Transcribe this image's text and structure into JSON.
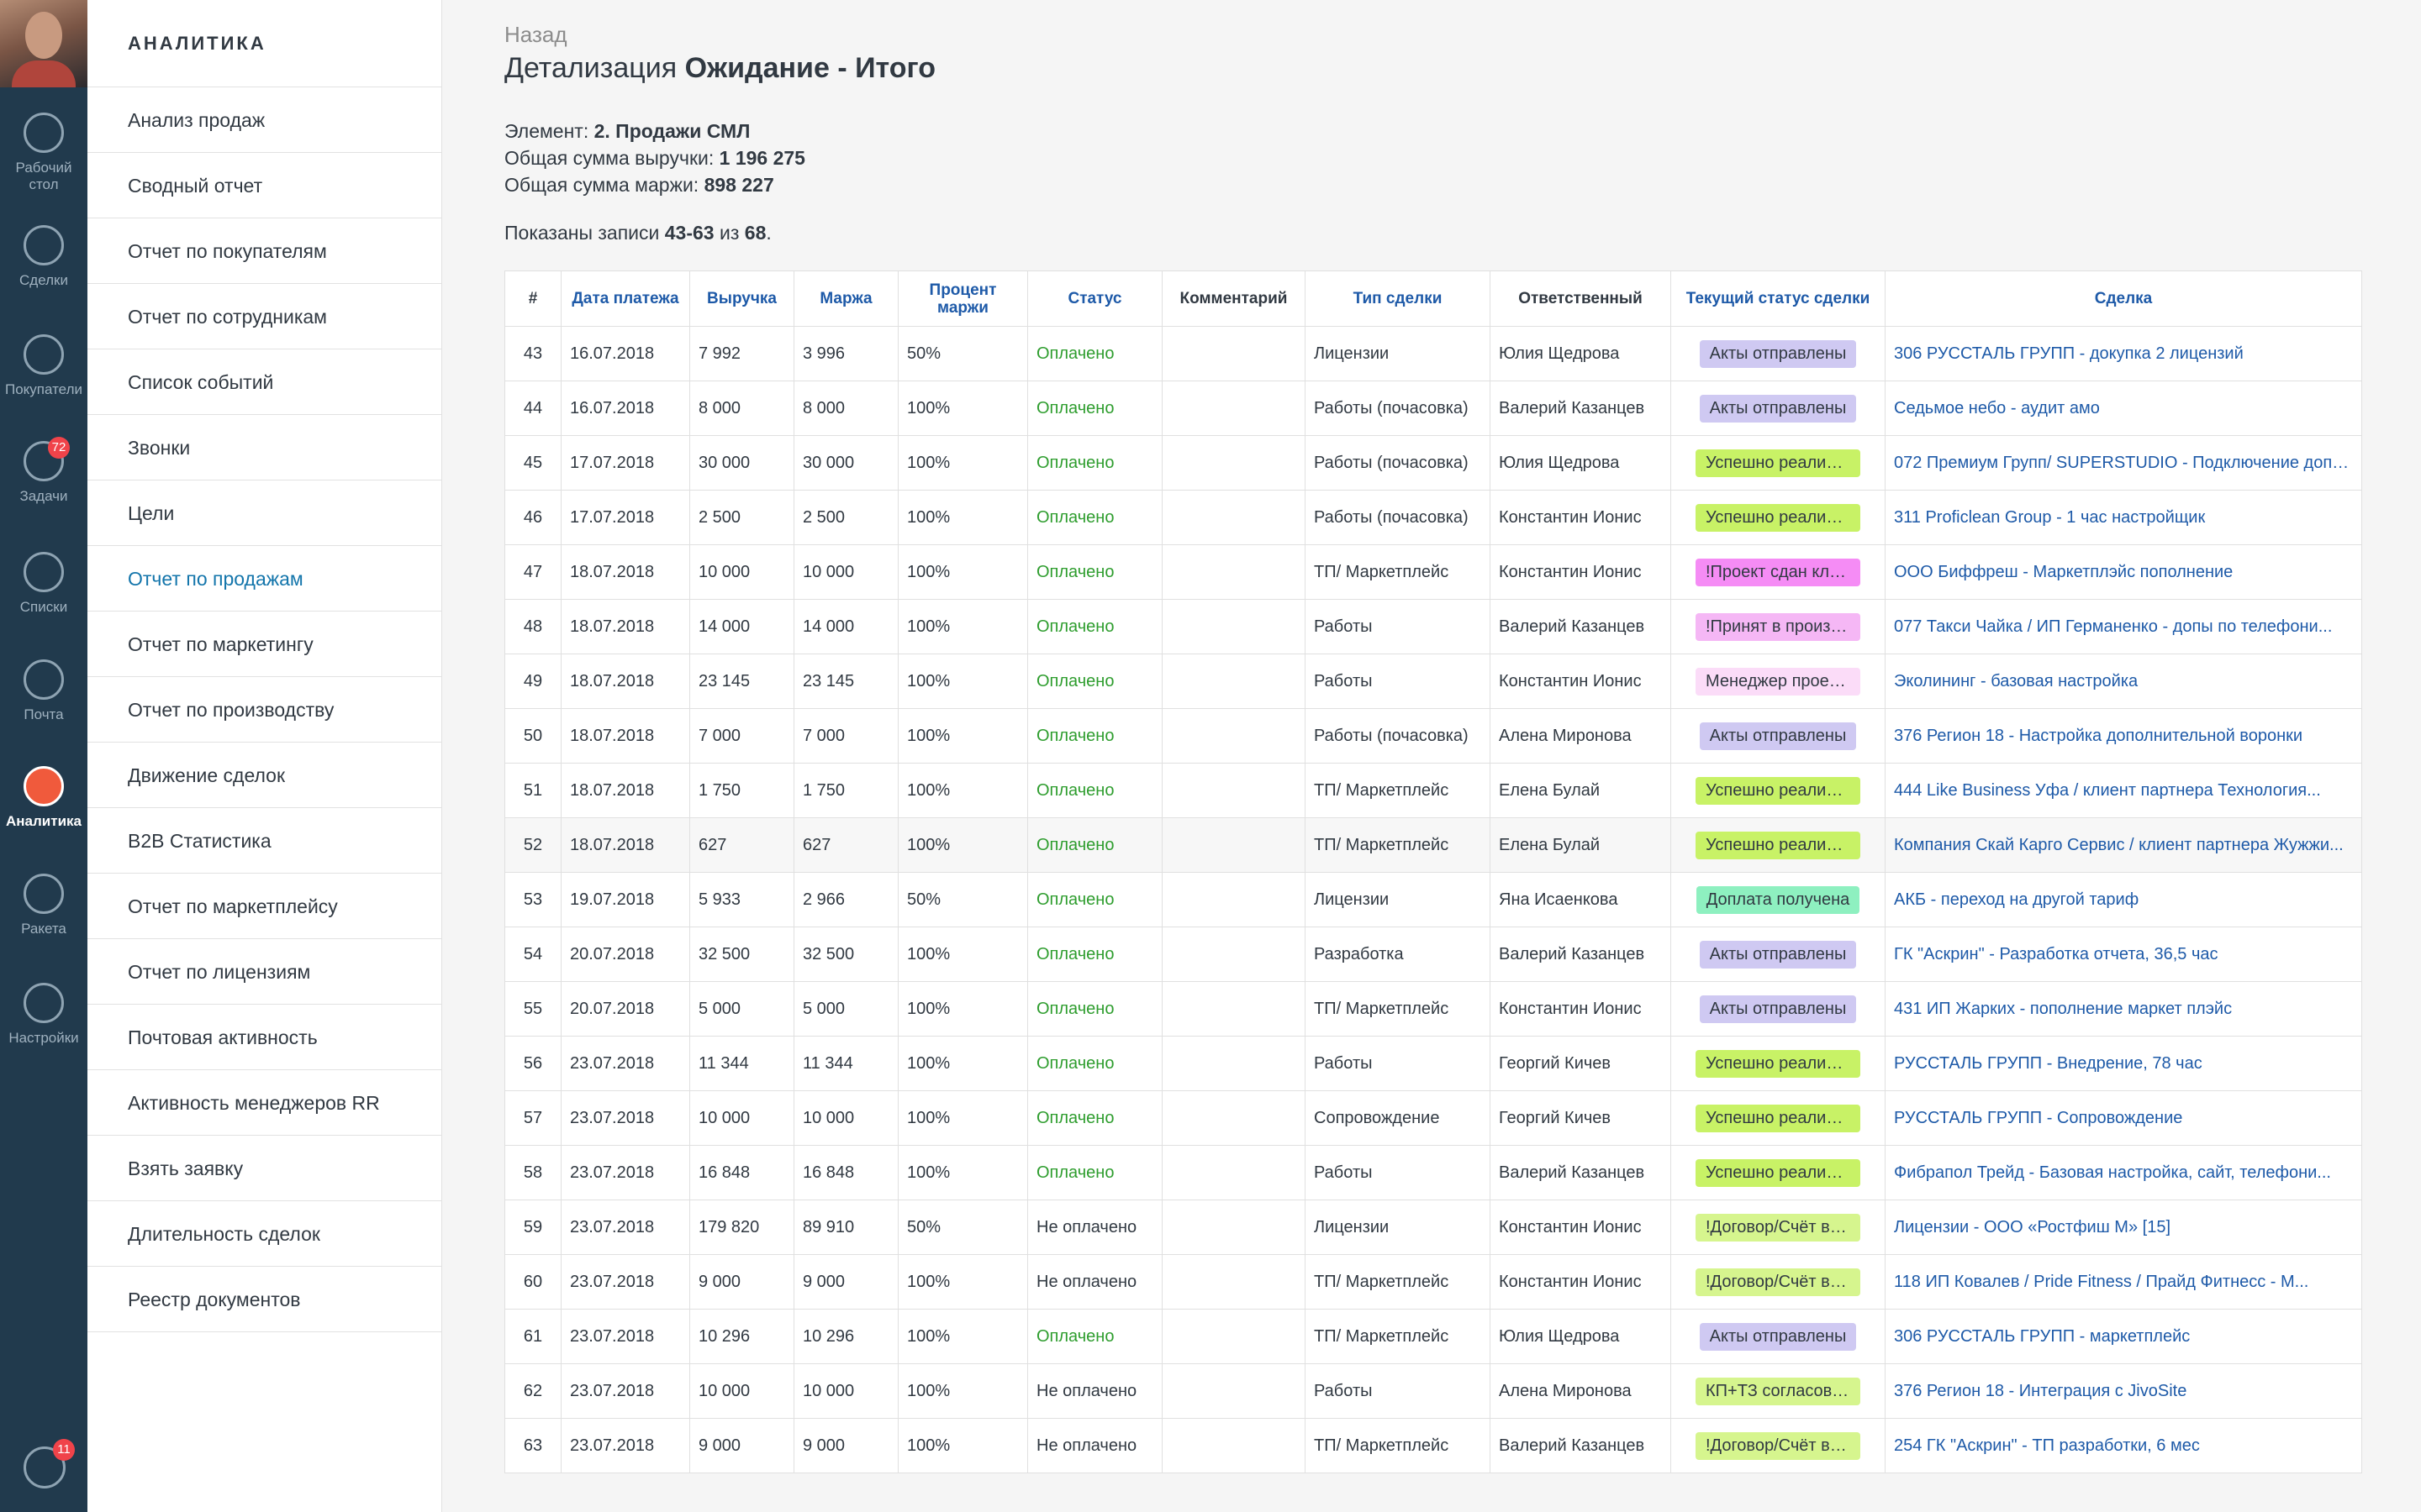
{
  "nav": {
    "items": [
      {
        "label": "Рабочий стол",
        "icon": "dashboard-icon"
      },
      {
        "label": "Сделки",
        "icon": "deals-icon"
      },
      {
        "label": "Покупатели",
        "icon": "customers-icon"
      },
      {
        "label": "Задачи",
        "icon": "tasks-icon",
        "badge": "72"
      },
      {
        "label": "Списки",
        "icon": "lists-icon"
      },
      {
        "label": "Почта",
        "icon": "mail-icon"
      },
      {
        "label": "Аналитика",
        "icon": "analytics-icon",
        "active": true
      },
      {
        "label": "Ракета",
        "icon": "rocket-icon"
      },
      {
        "label": "Настройки",
        "icon": "settings-icon"
      }
    ],
    "chat_badge": "11"
  },
  "sidebar": {
    "heading": "АНАЛИТИКА",
    "items": [
      "Анализ продаж",
      "Сводный отчет",
      "Отчет по покупателям",
      "Отчет по сотрудникам",
      "Список событий",
      "Звонки",
      "Цели",
      "Отчет по продажам",
      "Отчет по маркетингу",
      "Отчет по производству",
      "Движение сделок",
      "B2B Статистика",
      "Отчет по маркетплейсу",
      "Отчет по лицензиям",
      "Почтовая активность",
      "Активность менеджеров RR",
      "Взять заявку",
      "Длительность сделок",
      "Реестр документов"
    ],
    "active_index": 7
  },
  "main": {
    "back": "Назад",
    "title_prefix": "Детализация",
    "title_bold": "Ожидание - Итого",
    "element_label": "Элемент:",
    "element_value": "2. Продажи СМЛ",
    "revenue_label": "Общая сумма выручки:",
    "revenue_value": "1 196 275",
    "margin_label": "Общая сумма маржи:",
    "margin_value": "898 227",
    "shown_prefix": "Показаны записи",
    "shown_range": "43-63",
    "shown_of": "из",
    "shown_total": "68",
    "shown_suffix": "."
  },
  "table": {
    "headers": [
      "#",
      "Дата платежа",
      "Выручка",
      "Маржа",
      "Процент маржи",
      "Статус",
      "Комментарий",
      "Тип сделки",
      "Ответственный",
      "Текущий статус сделки",
      "Сделка"
    ],
    "rows": [
      [
        "43",
        "16.07.2018",
        "7 992",
        "3 996",
        "50%",
        "Оплачено",
        "",
        "Лицензии",
        "Юлия Щедрова",
        "Акты отправлены",
        "306 РУССТАЛЬ ГРУПП - докупка 2 лицензий"
      ],
      [
        "44",
        "16.07.2018",
        "8 000",
        "8 000",
        "100%",
        "Оплачено",
        "",
        "Работы (почасовка)",
        "Валерий Казанцев",
        "Акты отправлены",
        "Седьмое небо - аудит амо"
      ],
      [
        "45",
        "17.07.2018",
        "30 000",
        "30 000",
        "100%",
        "Оплачено",
        "",
        "Работы (почасовка)",
        "Юлия Щедрова",
        "Успешно реализов...",
        "072 Премиум Групп/ SUPERSTUDIO - Подключение доп п..."
      ],
      [
        "46",
        "17.07.2018",
        "2 500",
        "2 500",
        "100%",
        "Оплачено",
        "",
        "Работы (почасовка)",
        "Константин Ионис",
        "Успешно реализов...",
        "311 Proficlean Group - 1 час настройщик"
      ],
      [
        "47",
        "18.07.2018",
        "10 000",
        "10 000",
        "100%",
        "Оплачено",
        "",
        "ТП/ Маркетплейс",
        "Константин Ионис",
        "!Проект сдан клие...",
        "ООО Биффреш - Маркетплэйс пополнение"
      ],
      [
        "48",
        "18.07.2018",
        "14 000",
        "14 000",
        "100%",
        "Оплачено",
        "",
        "Работы",
        "Валерий Казанцев",
        "!Принят в произво...",
        "077 Такси Чайка / ИП Германенко - допы по телефони..."
      ],
      [
        "49",
        "18.07.2018",
        "23 145",
        "23 145",
        "100%",
        "Оплачено",
        "",
        "Работы",
        "Константин Ионис",
        "Менеджер проект...",
        "Эколининг - базовая настройка"
      ],
      [
        "50",
        "18.07.2018",
        "7 000",
        "7 000",
        "100%",
        "Оплачено",
        "",
        "Работы (почасовка)",
        "Алена Миронова",
        "Акты отправлены",
        "376 Регион 18 - Настройка дополнительной воронки"
      ],
      [
        "51",
        "18.07.2018",
        "1 750",
        "1 750",
        "100%",
        "Оплачено",
        "",
        "ТП/ Маркетплейс",
        "Елена Булай",
        "Успешно реализов...",
        "444 Like Business Уфа / клиент партнера Технология..."
      ],
      [
        "52",
        "18.07.2018",
        "627",
        "627",
        "100%",
        "Оплачено",
        "",
        "ТП/ Маркетплейс",
        "Елена Булай",
        "Успешно реализов...",
        "Компания Скай Карго Сервис / клиент партнера Жужжи..."
      ],
      [
        "53",
        "19.07.2018",
        "5 933",
        "2 966",
        "50%",
        "Оплачено",
        "",
        "Лицензии",
        "Яна Исаенкова",
        "Доплата получена",
        "АКБ - переход на другой тариф"
      ],
      [
        "54",
        "20.07.2018",
        "32 500",
        "32 500",
        "100%",
        "Оплачено",
        "",
        "Разработка",
        "Валерий Казанцев",
        "Акты отправлены",
        "ГК \"Аскрин\" - Разработка отчета, 36,5 час"
      ],
      [
        "55",
        "20.07.2018",
        "5 000",
        "5 000",
        "100%",
        "Оплачено",
        "",
        "ТП/ Маркетплейс",
        "Константин Ионис",
        "Акты отправлены",
        "431 ИП Жарких - пополнение маркет плэйс"
      ],
      [
        "56",
        "23.07.2018",
        "11 344",
        "11 344",
        "100%",
        "Оплачено",
        "",
        "Работы",
        "Георгий Кичев",
        "Успешно реализов...",
        "РУССТАЛЬ ГРУПП - Внедрение, 78 час"
      ],
      [
        "57",
        "23.07.2018",
        "10 000",
        "10 000",
        "100%",
        "Оплачено",
        "",
        "Сопровождение",
        "Георгий Кичев",
        "Успешно реализов...",
        "РУССТАЛЬ ГРУПП - Сопровождение"
      ],
      [
        "58",
        "23.07.2018",
        "16 848",
        "16 848",
        "100%",
        "Оплачено",
        "",
        "Работы",
        "Валерий Казанцев",
        "Успешно реализов...",
        "Фибрапол Трейд - Базовая настройка, сайт, телефони..."
      ],
      [
        "59",
        "23.07.2018",
        "179 820",
        "89 910",
        "50%",
        "Не оплачено",
        "",
        "Лицензии",
        "Константин Ионис",
        "!Договор/Счёт выс...",
        "Лицензии - ООО «Ростфиш М» [15]"
      ],
      [
        "60",
        "23.07.2018",
        "9 000",
        "9 000",
        "100%",
        "Не оплачено",
        "",
        "ТП/ Маркетплейс",
        "Константин Ионис",
        "!Договор/Счёт выс...",
        "118 ИП Ковалев / Pride Fitness / Прайд Фитнесс - М..."
      ],
      [
        "61",
        "23.07.2018",
        "10 296",
        "10 296",
        "100%",
        "Оплачено",
        "",
        "ТП/ Маркетплейс",
        "Юлия Щедрова",
        "Акты отправлены",
        "306 РУССТАЛЬ ГРУПП - маркетплейс"
      ],
      [
        "62",
        "23.07.2018",
        "10 000",
        "10 000",
        "100%",
        "Не оплачено",
        "",
        "Работы",
        "Алена Миронова",
        "КП+ТЗ согласовано",
        "376 Регион 18 - Интеграция с JivoSite"
      ],
      [
        "63",
        "23.07.2018",
        "9 000",
        "9 000",
        "100%",
        "Не оплачено",
        "",
        "ТП/ Маркетплейс",
        "Валерий Казанцев",
        "!Договор/Счёт выс...",
        "254 ГК \"Аскрин\" - ТП разработки, 6 мес"
      ]
    ],
    "status_colors": {
      "Акты отправлены": "#cfc9f2",
      "Успешно реализов...": "#c8f266",
      "!Проект сдан клие...": "#f58cf5",
      "!Принят в произво...": "#f5b7f5",
      "Менеджер проект...": "#fbdcf8",
      "Доплата получена": "#8ef0c0",
      "!Договор/Счёт выс...": "#d6f58e",
      "КП+ТЗ согласовано": "#d6f58e"
    },
    "paid_color": "#2e9d2e",
    "link_color": "#1e5aa8"
  }
}
